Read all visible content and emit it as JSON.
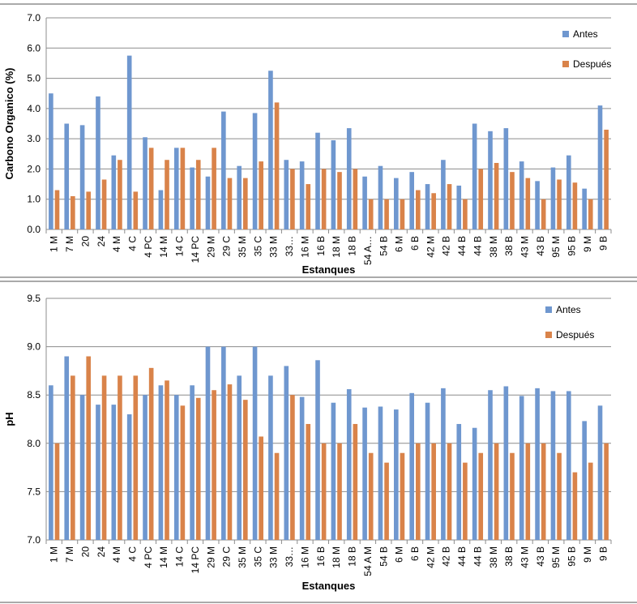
{
  "chart_data": [
    {
      "type": "bar",
      "title": "",
      "xlabel": "Estanques",
      "ylabel": "Carbono Organico (%)",
      "ylim": [
        0,
        7
      ],
      "yticks": [
        "0.0",
        "1.0",
        "2.0",
        "3.0",
        "4.0",
        "5.0",
        "6.0",
        "7.0"
      ],
      "grid": true,
      "legend_position": "top-right",
      "colors": {
        "antes": "#6f97cf",
        "despues": "#d9834a"
      },
      "categories": [
        "1 M",
        "7 M",
        "20",
        "24",
        "4 M",
        "4 C",
        "4 PC",
        "14 M",
        "14 C",
        "14 PC",
        "29 M",
        "29 C",
        "35 M",
        "35 C",
        "33 M",
        "33…",
        "16 M",
        "16 B",
        "18 M",
        "18 B",
        "54 A…",
        "54 B",
        "6 M",
        "6 B",
        "42 M",
        "42 B",
        "44 B",
        "44 B",
        "38 M",
        "38 B",
        "43 M",
        "43 B",
        "95 M",
        "95 B",
        "9 M",
        "9 B"
      ],
      "series": [
        {
          "name": "Antes",
          "values": [
            4.5,
            3.5,
            3.45,
            4.4,
            2.45,
            5.75,
            3.05,
            1.3,
            2.7,
            2.05,
            1.75,
            3.9,
            2.1,
            3.85,
            5.25,
            2.3,
            2.25,
            3.2,
            2.95,
            3.35,
            1.75,
            2.1,
            1.7,
            1.9,
            1.5,
            2.3,
            1.45,
            3.5,
            3.25,
            3.35,
            2.25,
            1.6,
            2.05,
            2.45,
            1.35,
            4.1
          ]
        },
        {
          "name": "Después",
          "values": [
            1.3,
            1.1,
            1.25,
            1.65,
            2.3,
            1.25,
            2.7,
            2.3,
            2.7,
            2.3,
            2.7,
            1.7,
            1.7,
            2.25,
            4.2,
            2.0,
            1.5,
            2.0,
            1.9,
            2.0,
            1.0,
            1.0,
            1.0,
            1.3,
            1.2,
            1.5,
            1.0,
            2.0,
            2.2,
            1.9,
            1.7,
            1.0,
            1.65,
            1.55,
            1.0,
            3.3
          ]
        }
      ]
    },
    {
      "type": "bar",
      "title": "",
      "xlabel": "Estanques",
      "ylabel": "pH",
      "ylim": [
        7,
        9.5
      ],
      "yticks": [
        "7.0",
        "7.5",
        "8.0",
        "8.5",
        "9.0",
        "9.5"
      ],
      "grid": true,
      "legend_position": "top-right",
      "colors": {
        "antes": "#6f97cf",
        "despues": "#d9834a"
      },
      "categories": [
        "1 M",
        "7 M",
        "20",
        "24",
        "4 M",
        "4 C",
        "4 PC",
        "14 M",
        "14 C",
        "14 PC",
        "29 M",
        "29 C",
        "35 M",
        "35 C",
        "33 M",
        "33…",
        "16 M",
        "16 B",
        "18 M",
        "18 B",
        "54 A M",
        "54 B",
        "6 M",
        "6 B",
        "42 M",
        "42 B",
        "44 B",
        "44 B",
        "38 M",
        "38 B",
        "43 M",
        "43 B",
        "95 M",
        "95 B",
        "9 M",
        "9 B"
      ],
      "series": [
        {
          "name": "Antes",
          "values": [
            8.6,
            8.9,
            8.5,
            8.4,
            8.4,
            8.3,
            8.5,
            8.6,
            8.5,
            8.6,
            9.0,
            9.0,
            8.7,
            9.0,
            8.7,
            8.8,
            8.48,
            8.86,
            8.42,
            8.56,
            8.37,
            8.38,
            8.35,
            8.52,
            8.42,
            8.57,
            8.2,
            8.16,
            8.55,
            8.59,
            8.49,
            8.57,
            8.54,
            8.54,
            8.23,
            8.39
          ]
        },
        {
          "name": "Después",
          "values": [
            8.0,
            8.7,
            8.9,
            8.7,
            8.7,
            8.7,
            8.78,
            8.65,
            8.39,
            8.47,
            8.55,
            8.61,
            8.45,
            8.07,
            7.9,
            8.5,
            8.2,
            8.0,
            8.0,
            8.2,
            7.9,
            7.8,
            7.9,
            8.0,
            8.0,
            8.0,
            7.8,
            7.9,
            8.0,
            7.9,
            8.0,
            8.0,
            7.9,
            7.7,
            7.8,
            8.0
          ]
        }
      ]
    }
  ]
}
